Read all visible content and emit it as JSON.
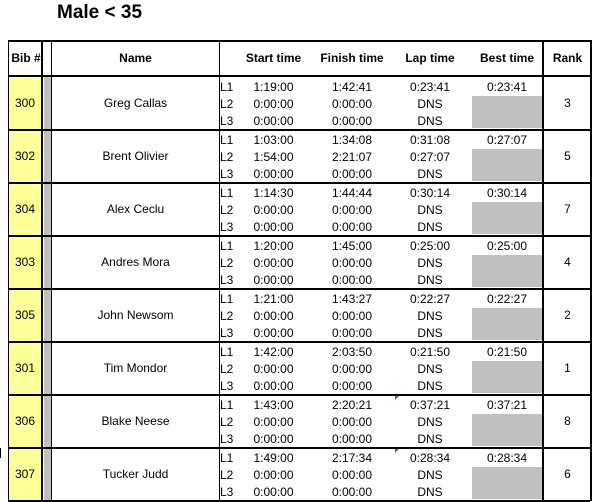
{
  "title": "Male < 35",
  "headers": {
    "bib": "Bib #",
    "name": "Name",
    "start": "Start time",
    "finish": "Finish time",
    "lap": "Lap time",
    "best": "Best time",
    "rank": "Rank"
  },
  "rows": [
    {
      "bib": "300",
      "name": "Greg Callas",
      "best": "0:23:41",
      "rank": "3",
      "laps": [
        {
          "label": "L1",
          "start": "1:19:00",
          "finish": "1:42:41",
          "lap": "0:23:41"
        },
        {
          "label": "L2",
          "start": "0:00:00",
          "finish": "0:00:00",
          "lap": "DNS"
        },
        {
          "label": "L3",
          "start": "0:00:00",
          "finish": "0:00:00",
          "lap": "DNS"
        }
      ]
    },
    {
      "bib": "302",
      "name": "Brent Olivier",
      "best": "0:27:07",
      "rank": "5",
      "laps": [
        {
          "label": "L1",
          "start": "1:03:00",
          "finish": "1:34:08",
          "lap": "0:31:08"
        },
        {
          "label": "L2",
          "start": "1:54:00",
          "finish": "2:21:07",
          "lap": "0:27:07"
        },
        {
          "label": "L3",
          "start": "0:00:00",
          "finish": "0:00:00",
          "lap": "DNS"
        }
      ]
    },
    {
      "bib": "304",
      "name": "Alex Ceclu",
      "best": "0:30:14",
      "rank": "7",
      "laps": [
        {
          "label": "L1",
          "start": "1:14:30",
          "finish": "1:44:44",
          "lap": "0:30:14"
        },
        {
          "label": "L2",
          "start": "0:00:00",
          "finish": "0:00:00",
          "lap": "DNS"
        },
        {
          "label": "L3",
          "start": "0:00:00",
          "finish": "0:00:00",
          "lap": "DNS"
        }
      ]
    },
    {
      "bib": "303",
      "name": "Andres Mora",
      "best": "0:25:00",
      "rank": "4",
      "laps": [
        {
          "label": "L1",
          "start": "1:20:00",
          "finish": "1:45:00",
          "lap": "0:25:00"
        },
        {
          "label": "L2",
          "start": "0:00:00",
          "finish": "0:00:00",
          "lap": "DNS"
        },
        {
          "label": "L3",
          "start": "0:00:00",
          "finish": "0:00:00",
          "lap": "DNS"
        }
      ]
    },
    {
      "bib": "305",
      "name": "John Newsom",
      "best": "0:22:27",
      "rank": "2",
      "laps": [
        {
          "label": "L1",
          "start": "1:21:00",
          "finish": "1:43:27",
          "lap": "0:22:27"
        },
        {
          "label": "L2",
          "start": "0:00:00",
          "finish": "0:00:00",
          "lap": "DNS"
        },
        {
          "label": "L3",
          "start": "0:00:00",
          "finish": "0:00:00",
          "lap": "DNS"
        }
      ]
    },
    {
      "bib": "301",
      "name": "Tim Mondor",
      "best": "0:21:50",
      "rank": "1",
      "laps": [
        {
          "label": "L1",
          "start": "1:42:00",
          "finish": "2:03:50",
          "lap": "0:21:50"
        },
        {
          "label": "L2",
          "start": "0:00:00",
          "finish": "0:00:00",
          "lap": "DNS"
        },
        {
          "label": "L3",
          "start": "0:00:00",
          "finish": "0:00:00",
          "lap": "DNS"
        }
      ]
    },
    {
      "bib": "306",
      "name": "Blake Neese",
      "best": "0:37:21",
      "rank": "8",
      "laps": [
        {
          "label": "L1",
          "start": "1:43:00",
          "finish": "2:20:21",
          "lap": "0:37:21"
        },
        {
          "label": "L2",
          "start": "0:00:00",
          "finish": "0:00:00",
          "lap": "DNS"
        },
        {
          "label": "L3",
          "start": "0:00:00",
          "finish": "0:00:00",
          "lap": "DNS"
        }
      ]
    },
    {
      "bib": "307",
      "name": "Tucker Judd",
      "best": "0:28:34",
      "rank": "6",
      "laps": [
        {
          "label": "L1",
          "start": "1:49:00",
          "finish": "2:17:34",
          "lap": "0:28:34"
        },
        {
          "label": "L2",
          "start": "0:00:00",
          "finish": "0:00:00",
          "lap": "DNS"
        },
        {
          "label": "L3",
          "start": "0:00:00",
          "finish": "0:00:00",
          "lap": "DNS"
        }
      ]
    }
  ]
}
